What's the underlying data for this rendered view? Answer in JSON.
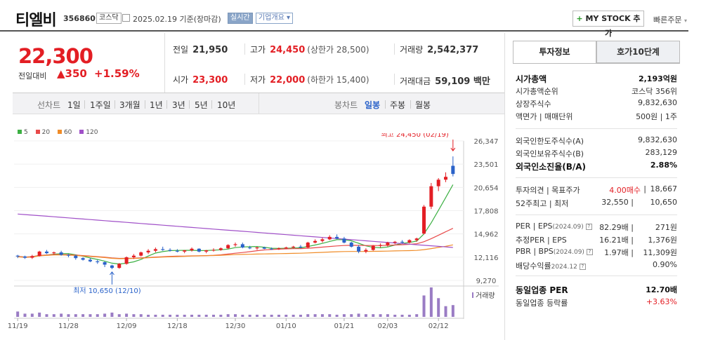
{
  "header": {
    "stock_name": "티엘비",
    "stock_code": "356860",
    "market": "코스닥",
    "date": "2025.02.19 기준(장마감)",
    "live_label": "실시간",
    "info_label": "기업개요",
    "mystock_label": "MY STOCK 추가",
    "quick_order": "빠른주문"
  },
  "price": {
    "current": "22,300",
    "prev_label": "전일대비",
    "change": "350",
    "change_pct": "+1.59%"
  },
  "stats": {
    "prev_close_label": "전일",
    "prev_close": "21,950",
    "high_label": "고가",
    "high": "24,450",
    "upper_limit": "(상한가 28,500)",
    "volume_label": "거래량",
    "volume": "2,542,377",
    "open_label": "시가",
    "open": "23,300",
    "low_label": "저가",
    "low": "22,000",
    "lower_limit": "(하한가 15,400)",
    "amount_label": "거래대금",
    "amount": "59,109 백만"
  },
  "period_bar": {
    "line_label": "선차트",
    "periods": [
      "1일",
      "1주일",
      "3개월",
      "1년",
      "3년",
      "5년",
      "10년"
    ],
    "candle_label": "봉차트",
    "candle_periods": [
      "일봉",
      "주봉",
      "월봉"
    ],
    "selected_candle": "일봉"
  },
  "legend": [
    {
      "label": "5",
      "color": "#3cb043"
    },
    {
      "label": "20",
      "color": "#e84a4a"
    },
    {
      "label": "60",
      "color": "#f08c28"
    },
    {
      "label": "120",
      "color": "#a050c8"
    }
  ],
  "chart_data": {
    "type": "candlestick",
    "y_ticks": [
      "26,347",
      "23,501",
      "20,654",
      "17,808",
      "14,962",
      "12,116",
      "9,270"
    ],
    "ylim": [
      9270,
      26347
    ],
    "x_ticks": [
      "11/19",
      "11/28",
      "12/09",
      "12/18",
      "12/30",
      "01/10",
      "01/21",
      "02/03",
      "02/12"
    ],
    "high_annotation": "최고 24,450 (02/19)",
    "low_annotation": "최저 10,650 (12/10)",
    "volume_label": "거래량",
    "colors": {
      "up": "#e31e24",
      "down": "#2a62c9"
    },
    "candles": [
      [
        12300,
        12400,
        12000,
        12200
      ],
      [
        12200,
        12300,
        11900,
        12050
      ],
      [
        12050,
        12400,
        11900,
        12250
      ],
      [
        12250,
        12900,
        12200,
        12800
      ],
      [
        12800,
        13000,
        12500,
        12600
      ],
      [
        12600,
        12800,
        12400,
        12700
      ],
      [
        12700,
        12900,
        12300,
        12400
      ],
      [
        12400,
        12500,
        12100,
        12300
      ],
      [
        12300,
        12400,
        11800,
        12000
      ],
      [
        12000,
        12100,
        11700,
        11800
      ],
      [
        11800,
        12000,
        11500,
        11600
      ],
      [
        11600,
        11800,
        11300,
        11500
      ],
      [
        11500,
        11600,
        10900,
        11200
      ],
      [
        11100,
        11200,
        10650,
        10800
      ],
      [
        10800,
        11400,
        10700,
        11300
      ],
      [
        11300,
        12200,
        11200,
        12100
      ],
      [
        12100,
        12500,
        11900,
        12300
      ],
      [
        12300,
        12800,
        12200,
        12700
      ],
      [
        12700,
        13100,
        12500,
        12900
      ],
      [
        12900,
        13300,
        12700,
        13100
      ],
      [
        13100,
        13400,
        12900,
        13000
      ],
      [
        13000,
        13200,
        12800,
        12900
      ],
      [
        12900,
        13100,
        12700,
        12800
      ],
      [
        12800,
        13000,
        12600,
        12950
      ],
      [
        12950,
        13300,
        12800,
        13150
      ],
      [
        13150,
        13200,
        12700,
        12800
      ],
      [
        12800,
        13000,
        12600,
        12950
      ],
      [
        12950,
        13200,
        12800,
        13000
      ],
      [
        13000,
        13300,
        12900,
        13200
      ],
      [
        13200,
        13700,
        13100,
        13600
      ],
      [
        13600,
        13900,
        13400,
        13700
      ],
      [
        13700,
        13900,
        13200,
        13300
      ],
      [
        13300,
        13500,
        13100,
        13200
      ],
      [
        13200,
        13400,
        13000,
        13300
      ],
      [
        13300,
        13400,
        13100,
        13150
      ],
      [
        13150,
        13300,
        13000,
        13100
      ],
      [
        13100,
        13300,
        13000,
        13200
      ],
      [
        13200,
        13400,
        13100,
        13300
      ],
      [
        13300,
        13500,
        13200,
        13400
      ],
      [
        13400,
        13600,
        13200,
        13300
      ],
      [
        13300,
        14000,
        13200,
        13900
      ],
      [
        13900,
        14300,
        13800,
        14100
      ],
      [
        14100,
        14500,
        13900,
        14300
      ],
      [
        14300,
        14800,
        14200,
        14600
      ],
      [
        14600,
        14900,
        14300,
        14400
      ],
      [
        14400,
        14600,
        13800,
        13900
      ],
      [
        13900,
        14000,
        13300,
        13400
      ],
      [
        13400,
        13600,
        12600,
        12800
      ],
      [
        12800,
        13200,
        12600,
        13000
      ],
      [
        13000,
        13600,
        12900,
        13500
      ],
      [
        13500,
        13800,
        13300,
        13600
      ],
      [
        13600,
        14000,
        13400,
        13900
      ],
      [
        13900,
        14100,
        13700,
        14000
      ],
      [
        14000,
        14200,
        13800,
        13900
      ],
      [
        13900,
        14300,
        13800,
        14200
      ],
      [
        14200,
        14500,
        14000,
        14400
      ],
      [
        15000,
        18500,
        14900,
        18300
      ],
      [
        18300,
        21200,
        18000,
        20800
      ],
      [
        20800,
        21800,
        20200,
        21600
      ],
      [
        21600,
        22500,
        21300,
        21950
      ],
      [
        23300,
        24450,
        22000,
        22300
      ]
    ],
    "volumes": [
      10,
      6,
      6,
      8,
      5,
      5,
      6,
      5,
      5,
      5,
      5,
      5,
      6,
      8,
      5,
      6,
      5,
      5,
      4,
      4,
      4,
      4,
      4,
      4,
      4,
      4,
      4,
      4,
      4,
      5,
      5,
      4,
      4,
      4,
      4,
      4,
      4,
      4,
      4,
      4,
      5,
      5,
      5,
      5,
      4,
      5,
      5,
      6,
      5,
      5,
      5,
      5,
      4,
      4,
      4,
      5,
      40,
      55,
      35,
      20,
      22
    ]
  },
  "right_panel": {
    "tabs": [
      "투자정보",
      "호가10단계"
    ],
    "rows": [
      {
        "key": "시가총액",
        "value": "2,193억원",
        "bold": true
      },
      {
        "key": "시가총액순위",
        "value": "코스닥 356위"
      },
      {
        "key": "상장주식수",
        "value": "9,832,630"
      },
      {
        "key": "액면가 | 매매단위",
        "value": "500원 | 1주"
      },
      {
        "key": "외국인한도주식수(A)",
        "value": "9,832,630"
      },
      {
        "key": "외국인보유주식수(B)",
        "value": "283,129"
      },
      {
        "key": "외국인소진율(B/A)",
        "value": "2.88%",
        "bold": true
      },
      {
        "key": "투자의견 | 목표주가",
        "value_red": "4.00매수",
        "value": "18,667"
      },
      {
        "key": "52주최고 | 최저",
        "value_mid": "32,550",
        "value": "10,650"
      },
      {
        "key": "PER | EPS",
        "sub": "(2024.09)",
        "value_mid": "82.29배",
        "value": "271원"
      },
      {
        "key": "추정PER | EPS",
        "value_mid": "16.21배",
        "value": "1,376원"
      },
      {
        "key": "PBR | BPS",
        "sub": "(2024.09)",
        "value_mid": "1.97배",
        "value": "11,309원"
      },
      {
        "key": "배당수익률",
        "sub": "2024.12",
        "value": "0.90%"
      },
      {
        "key": "동일업종 PER",
        "value": "12.70배",
        "bold": true
      },
      {
        "key": "동일업종 등락률",
        "value": "+3.63%",
        "red": true
      }
    ]
  }
}
